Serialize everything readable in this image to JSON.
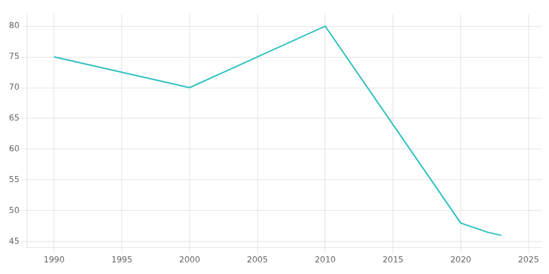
{
  "chart_data": {
    "type": "line",
    "x": [
      1990,
      1994,
      2000,
      2010,
      2020,
      2022,
      2023
    ],
    "values": [
      75,
      73,
      70,
      80,
      48,
      46.5,
      46
    ],
    "color": "#2ABFBF",
    "xlim": [
      1988,
      2026
    ],
    "xticks": [
      1990,
      1995,
      2000,
      2005,
      2010,
      2015,
      2020,
      2025
    ],
    "ylim": [
      44,
      82
    ],
    "yticks": [
      45,
      50,
      55,
      60,
      65,
      70,
      75,
      80
    ],
    "grid": true
  }
}
